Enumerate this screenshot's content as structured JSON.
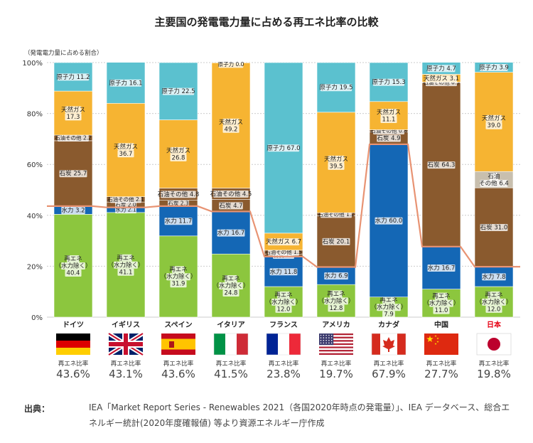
{
  "title": "主要国の発電電力量に占める再エネ比率の比較",
  "y_axis_label": "（発電電力量に占める割合）",
  "rate_label": "再エネ比率",
  "source": {
    "heading": "出典：",
    "text": "IEA「Market Report Series - Renewables 2021（各国2020年時点の発電量）」、IEA データベース、総合エネルギー統計(2020年度確報値) 等より資源エネルギー庁作成"
  },
  "colors": {
    "renewable": "#8cc63e",
    "hydro": "#1467b5",
    "coal": "#8a5a2e",
    "oil_other": "#8a5a2e",
    "gas": "#f6b432",
    "nuclear": "#5bc1cf",
    "line": "#e89373",
    "japan_label": "#e60012"
  },
  "chart_data": {
    "type": "bar",
    "stacked": true,
    "ylim": [
      0,
      100
    ],
    "yticks": [
      "0%",
      "20%",
      "40%",
      "60%",
      "80%",
      "100%"
    ],
    "categories": [
      "ドイツ",
      "イギリス",
      "スペイン",
      "イタリア",
      "フランス",
      "アメリカ",
      "カナダ",
      "中国",
      "日本"
    ],
    "bars": [
      {
        "country": "ドイツ",
        "flag": "germany-flag",
        "rate": "43.6%",
        "segments": [
          {
            "key": "renewable",
            "lines": [
              "再エネ",
              "（水力除く）",
              "40.4"
            ],
            "value": 40.4
          },
          {
            "key": "hydro",
            "lines": [
              "水力 3.2"
            ],
            "value": 3.2
          },
          {
            "key": "coal",
            "lines": [
              "石炭 25.7"
            ],
            "value": 25.7
          },
          {
            "key": "oil_other",
            "lines": [
              "石油その他 2.2"
            ],
            "value": 2.2
          },
          {
            "key": "gas",
            "lines": [
              "天然ガス",
              "17.3"
            ],
            "value": 17.3
          },
          {
            "key": "nuclear",
            "lines": [
              "原子力 11.2"
            ],
            "value": 11.2
          }
        ]
      },
      {
        "country": "イギリス",
        "flag": "uk-flag",
        "rate": "43.1%",
        "segments": [
          {
            "key": "renewable",
            "lines": [
              "再エネ",
              "（水力除く）",
              "41.1"
            ],
            "value": 41.1
          },
          {
            "key": "hydro",
            "lines": [
              "水力 2.1"
            ],
            "value": 2.1
          },
          {
            "key": "coal",
            "lines": [
              "石炭 2.0"
            ],
            "value": 2.0
          },
          {
            "key": "oil_other",
            "lines": [
              "石油その他 2.1"
            ],
            "value": 2.1
          },
          {
            "key": "gas",
            "lines": [
              "天然ガス",
              "36.7"
            ],
            "value": 36.7
          },
          {
            "key": "nuclear",
            "lines": [
              "原子力 16.1"
            ],
            "value": 16.1
          }
        ]
      },
      {
        "country": "スペイン",
        "flag": "spain-flag",
        "rate": "43.6%",
        "segments": [
          {
            "key": "renewable",
            "lines": [
              "再エネ",
              "（水力除く）",
              "31.9"
            ],
            "value": 31.9
          },
          {
            "key": "hydro",
            "lines": [
              "水力 11.7"
            ],
            "value": 11.7
          },
          {
            "key": "coal",
            "lines": [
              "石炭 2.3"
            ],
            "value": 2.3
          },
          {
            "key": "oil_other",
            "lines": [
              "石油その他 4.8"
            ],
            "value": 4.8
          },
          {
            "key": "gas",
            "lines": [
              "天然ガス",
              "26.8"
            ],
            "value": 26.8
          },
          {
            "key": "nuclear",
            "lines": [
              "原子力 22.5"
            ],
            "value": 22.5
          }
        ]
      },
      {
        "country": "イタリア",
        "flag": "italy-flag",
        "rate": "41.5%",
        "segments": [
          {
            "key": "renewable",
            "lines": [
              "再エネ",
              "（水力除く）",
              "24.8"
            ],
            "value": 24.8
          },
          {
            "key": "hydro",
            "lines": [
              "水力 16.7"
            ],
            "value": 16.7
          },
          {
            "key": "coal",
            "lines": [
              "石炭 4.7"
            ],
            "value": 4.7
          },
          {
            "key": "oil_other",
            "lines": [
              "石油その他 4.5"
            ],
            "value": 4.5
          },
          {
            "key": "gas",
            "lines": [
              "天然ガス",
              "49.2"
            ],
            "value": 49.2
          },
          {
            "key": "nuclear",
            "lines": [
              "原子力 0.0"
            ],
            "value": 0.0
          }
        ]
      },
      {
        "country": "フランス",
        "flag": "france-flag",
        "rate": "23.8%",
        "segments": [
          {
            "key": "renewable",
            "lines": [
              "再エネ",
              "（水力除く）",
              "12.0"
            ],
            "value": 12.0
          },
          {
            "key": "hydro",
            "lines": [
              "水力 11.8"
            ],
            "value": 11.8
          },
          {
            "key": "coal",
            "lines": [
              "石炭 1.0"
            ],
            "value": 1.0
          },
          {
            "key": "oil_other",
            "lines": [
              "石油その他 1.5"
            ],
            "value": 1.5
          },
          {
            "key": "gas",
            "lines": [
              "天然ガス 6.7"
            ],
            "value": 6.7
          },
          {
            "key": "nuclear",
            "lines": [
              "原子力 67.0"
            ],
            "value": 67.0
          }
        ]
      },
      {
        "country": "アメリカ",
        "flag": "usa-flag",
        "rate": "19.7%",
        "segments": [
          {
            "key": "renewable",
            "lines": [
              "再エネ",
              "（水力除く）",
              "12.8"
            ],
            "value": 12.8
          },
          {
            "key": "hydro",
            "lines": [
              "水力 6.9"
            ],
            "value": 6.9
          },
          {
            "key": "coal",
            "lines": [
              "石炭 20.1"
            ],
            "value": 20.1
          },
          {
            "key": "oil_other",
            "lines": [
              "石油その他 1.2"
            ],
            "value": 1.2
          },
          {
            "key": "gas",
            "lines": [
              "天然ガス",
              "39.5"
            ],
            "value": 39.5
          },
          {
            "key": "nuclear",
            "lines": [
              "原子力 19.5"
            ],
            "value": 19.5
          }
        ]
      },
      {
        "country": "カナダ",
        "flag": "canada-flag",
        "rate": "67.9%",
        "segments": [
          {
            "key": "renewable",
            "lines": [
              "再エネ",
              "（水力除く）",
              "7.9"
            ],
            "value": 7.9
          },
          {
            "key": "hydro",
            "lines": [
              "水力 60.0"
            ],
            "value": 60.0
          },
          {
            "key": "coal",
            "lines": [
              "石炭 4.9"
            ],
            "value": 4.9
          },
          {
            "key": "oil_other",
            "lines": [
              "石油その他 0.8"
            ],
            "value": 0.8
          },
          {
            "key": "gas",
            "lines": [
              "天然ガス",
              "11.1"
            ],
            "value": 11.1
          },
          {
            "key": "nuclear",
            "lines": [
              "原子力 15.3"
            ],
            "value": 15.3
          }
        ]
      },
      {
        "country": "中国",
        "flag": "china-flag",
        "rate": "27.7%",
        "segments": [
          {
            "key": "renewable",
            "lines": [
              "再エネ",
              "（水力除く）",
              "11.0"
            ],
            "value": 11.0
          },
          {
            "key": "hydro",
            "lines": [
              "水力 16.7"
            ],
            "value": 16.7
          },
          {
            "key": "coal",
            "lines": [
              "石炭 64.3"
            ],
            "value": 64.3
          },
          {
            "key": "oil_other",
            "lines": [
              "石油その他 0.3"
            ],
            "value": 0.3
          },
          {
            "key": "gas",
            "lines": [
              "天然ガス 3.1"
            ],
            "value": 3.1
          },
          {
            "key": "nuclear",
            "lines": [
              "原子力 4.7"
            ],
            "value": 4.7
          }
        ]
      },
      {
        "country": "日本",
        "flag": "japan-flag",
        "rate": "19.8%",
        "highlight": true,
        "segments": [
          {
            "key": "renewable",
            "lines": [
              "再エネ",
              "（水力除く）",
              "12.0"
            ],
            "value": 12.0
          },
          {
            "key": "hydro",
            "lines": [
              "水力 7.8"
            ],
            "value": 7.8
          },
          {
            "key": "coal",
            "lines": [
              "石炭 31.0"
            ],
            "value": 31.0
          },
          {
            "key": "oil_other",
            "lines": [
              "石油",
              "その他 6.4"
            ],
            "value": 6.4
          },
          {
            "key": "gas",
            "lines": [
              "天然ガス",
              "39.0"
            ],
            "value": 39.0
          },
          {
            "key": "nuclear",
            "lines": [
              "原子力 3.9"
            ],
            "value": 3.9
          }
        ]
      }
    ]
  }
}
